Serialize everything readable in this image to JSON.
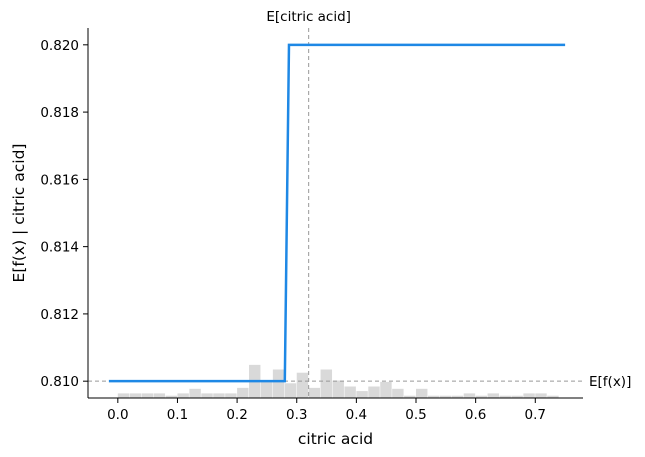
{
  "chart_data": {
    "type": "line",
    "title": "",
    "xlabel": "citric acid",
    "ylabel": "E[f(x) | citric acid]",
    "xlim": [
      -0.05,
      0.78
    ],
    "ylim": [
      0.8095,
      0.8205
    ],
    "x_ticks": [
      0.0,
      0.1,
      0.2,
      0.3,
      0.4,
      0.5,
      0.6,
      0.7
    ],
    "x_tick_labels": [
      "0.0",
      "0.1",
      "0.2",
      "0.3",
      "0.4",
      "0.5",
      "0.6",
      "0.7"
    ],
    "y_ticks": [
      0.81,
      0.812,
      0.814,
      0.816,
      0.818,
      0.82
    ],
    "y_tick_labels": [
      "0.810",
      "0.812",
      "0.814",
      "0.816",
      "0.818",
      "0.820"
    ],
    "grid": false,
    "series": [
      {
        "x": [
          -0.015,
          0.28,
          0.287,
          0.75
        ],
        "y": [
          0.81,
          0.81,
          0.82,
          0.82
        ],
        "color": "#1e88e5"
      }
    ],
    "reference_lines": {
      "expected_x": {
        "value": 0.32,
        "label": "E[citric acid]"
      },
      "expected_y": {
        "value": 0.81,
        "label": "E[f(x)]"
      }
    },
    "histogram": {
      "color": "#d9d9d9",
      "bin_width": 0.02,
      "bin_starts": [
        0.0,
        0.02,
        0.04,
        0.06,
        0.08,
        0.1,
        0.12,
        0.14,
        0.16,
        0.18,
        0.2,
        0.22,
        0.24,
        0.26,
        0.28,
        0.3,
        0.32,
        0.34,
        0.36,
        0.38,
        0.4,
        0.42,
        0.44,
        0.46,
        0.48,
        0.5,
        0.52,
        0.54,
        0.56,
        0.58,
        0.6,
        0.62,
        0.64,
        0.66,
        0.68,
        0.7,
        0.72
      ],
      "relative_heights": [
        0.1,
        0.1,
        0.1,
        0.1,
        0.05,
        0.1,
        0.2,
        0.1,
        0.1,
        0.1,
        0.22,
        0.72,
        0.38,
        0.62,
        0.32,
        0.55,
        0.22,
        0.62,
        0.38,
        0.25,
        0.15,
        0.25,
        0.35,
        0.2,
        0.05,
        0.2,
        0.05,
        0.05,
        0.05,
        0.1,
        0.05,
        0.1,
        0.05,
        0.05,
        0.1,
        0.1,
        0.05
      ]
    }
  }
}
